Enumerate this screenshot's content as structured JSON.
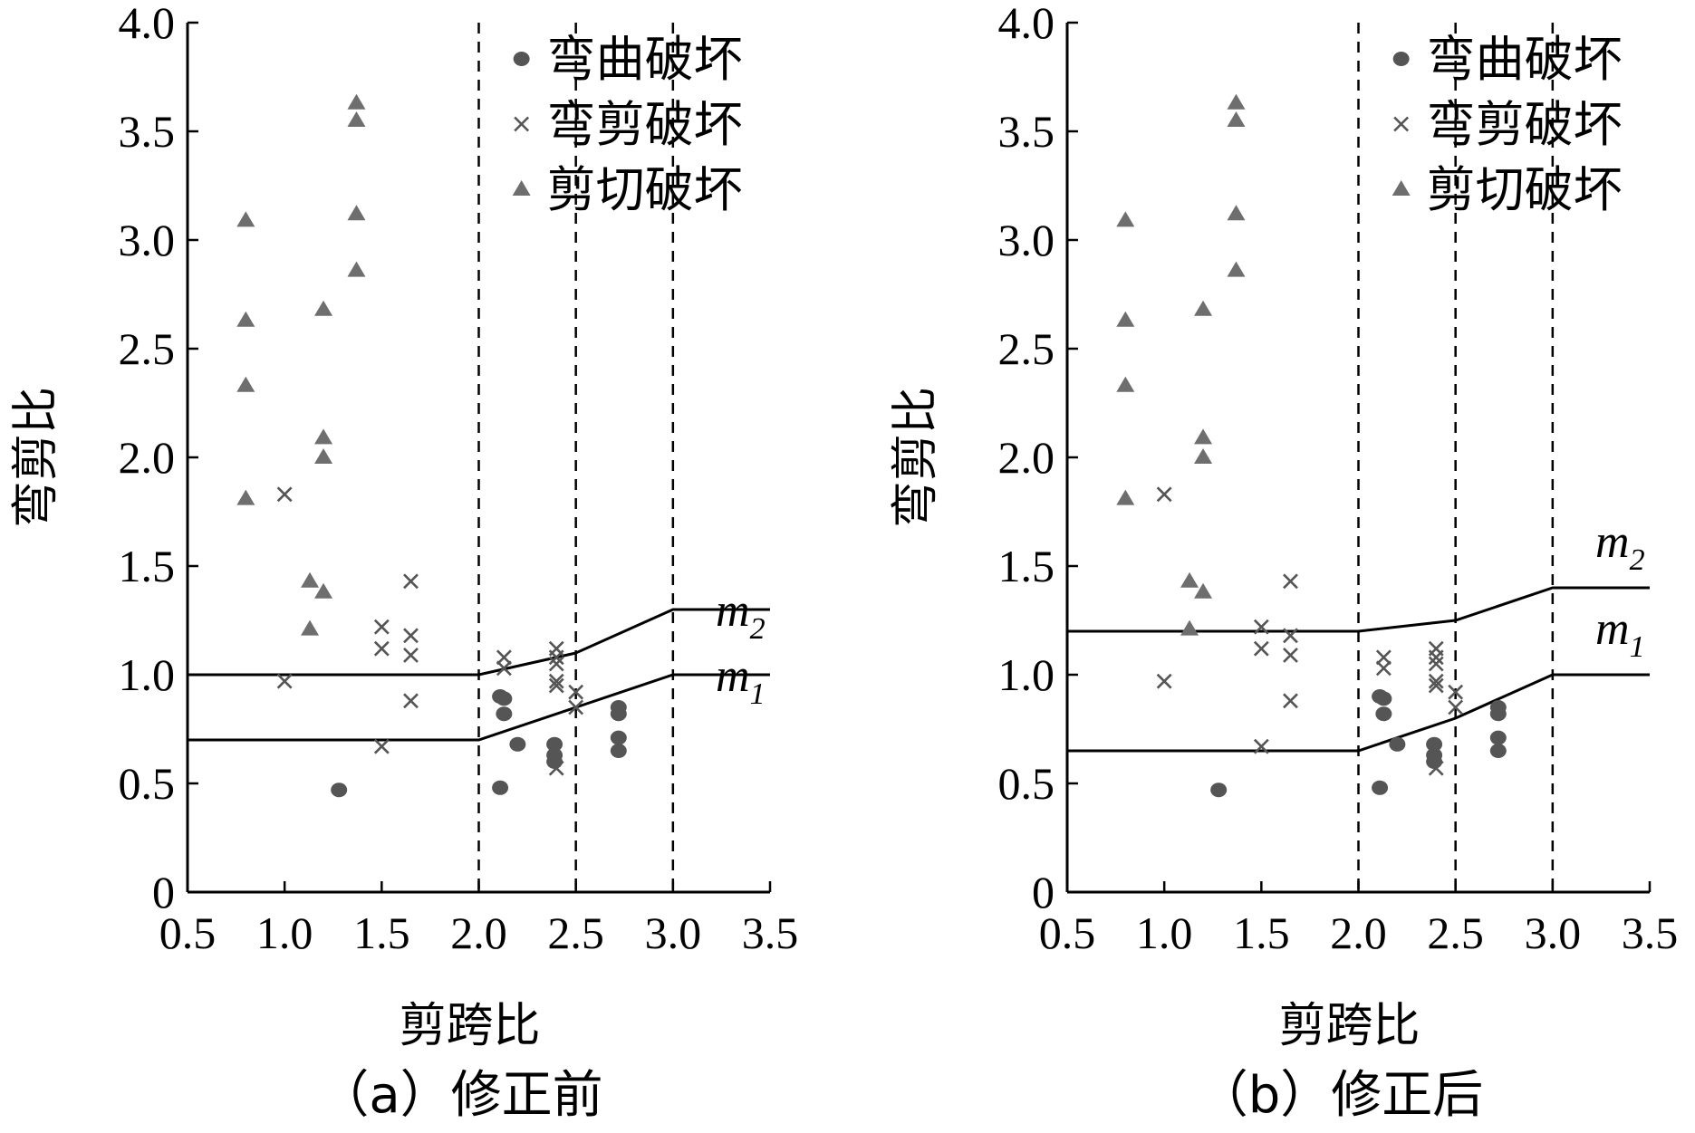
{
  "chart_data": [
    {
      "type": "scatter",
      "caption": "（a）修正前",
      "xlabel": "剪跨比",
      "ylabel": "弯剪比",
      "xlim": [
        0.5,
        3.5
      ],
      "ylim": [
        0,
        4.0
      ],
      "x_ticks": [
        "0.5",
        "1.0",
        "1.5",
        "2.0",
        "2.5",
        "3.0",
        "3.5"
      ],
      "y_ticks": [
        "0",
        "0.5",
        "1.0",
        "1.5",
        "2.0",
        "2.5",
        "3.0",
        "3.5",
        "4.0"
      ],
      "grid": false,
      "legend_position": "top-right",
      "dashed_vertical_lines": [
        2.0,
        2.5,
        3.0
      ],
      "series": [
        {
          "name": "弯曲破坏",
          "marker": "circle",
          "color": "#555555",
          "points": [
            [
              1.28,
              0.47
            ],
            [
              2.11,
              0.48
            ],
            [
              2.11,
              0.9
            ],
            [
              2.13,
              0.89
            ],
            [
              2.13,
              0.82
            ],
            [
              2.2,
              0.68
            ],
            [
              2.39,
              0.68
            ],
            [
              2.39,
              0.63
            ],
            [
              2.39,
              0.6
            ],
            [
              2.72,
              0.85
            ],
            [
              2.72,
              0.82
            ],
            [
              2.72,
              0.71
            ],
            [
              2.72,
              0.65
            ]
          ]
        },
        {
          "name": "弯剪破坏",
          "marker": "x",
          "color": "#555555",
          "points": [
            [
              1.0,
              1.83
            ],
            [
              1.0,
              0.97
            ],
            [
              1.5,
              1.22
            ],
            [
              1.5,
              1.12
            ],
            [
              1.5,
              0.67
            ],
            [
              1.65,
              1.43
            ],
            [
              1.65,
              1.18
            ],
            [
              1.65,
              1.09
            ],
            [
              1.65,
              0.88
            ],
            [
              2.13,
              1.08
            ],
            [
              2.13,
              1.03
            ],
            [
              2.4,
              1.12
            ],
            [
              2.4,
              1.08
            ],
            [
              2.4,
              1.05
            ],
            [
              2.4,
              0.97
            ],
            [
              2.4,
              0.95
            ],
            [
              2.4,
              0.57
            ],
            [
              2.5,
              0.92
            ],
            [
              2.5,
              0.85
            ]
          ]
        },
        {
          "name": "剪切破坏",
          "marker": "triangle",
          "color": "#6e6e6e",
          "points": [
            [
              0.8,
              3.09
            ],
            [
              0.8,
              2.63
            ],
            [
              0.8,
              2.33
            ],
            [
              0.8,
              1.81
            ],
            [
              1.13,
              1.43
            ],
            [
              1.13,
              1.21
            ],
            [
              1.2,
              2.68
            ],
            [
              1.2,
              2.09
            ],
            [
              1.2,
              2.0
            ],
            [
              1.2,
              1.38
            ],
            [
              1.37,
              3.63
            ],
            [
              1.37,
              3.55
            ],
            [
              1.37,
              3.12
            ],
            [
              1.37,
              2.86
            ]
          ]
        }
      ],
      "lines": [
        {
          "label": "m",
          "subscript": "2",
          "points": [
            [
              0.5,
              1.0
            ],
            [
              2.0,
              1.0
            ],
            [
              2.5,
              1.1
            ],
            [
              3.0,
              1.3
            ],
            [
              3.5,
              1.3
            ]
          ]
        },
        {
          "label": "m",
          "subscript": "1",
          "points": [
            [
              0.5,
              0.7
            ],
            [
              2.0,
              0.7
            ],
            [
              2.5,
              0.85
            ],
            [
              3.0,
              1.0
            ],
            [
              3.5,
              1.0
            ]
          ]
        }
      ]
    },
    {
      "type": "scatter",
      "caption": "（b）修正后",
      "xlabel": "剪跨比",
      "ylabel": "弯剪比",
      "xlim": [
        0.5,
        3.5
      ],
      "ylim": [
        0,
        4.0
      ],
      "x_ticks": [
        "0.5",
        "1.0",
        "1.5",
        "2.0",
        "2.5",
        "3.0",
        "3.5"
      ],
      "y_ticks": [
        "0",
        "0.5",
        "1.0",
        "1.5",
        "2.0",
        "2.5",
        "3.0",
        "3.5",
        "4.0"
      ],
      "grid": false,
      "legend_position": "top-right",
      "dashed_vertical_lines": [
        2.0,
        2.5,
        3.0
      ],
      "series": [
        {
          "name": "弯曲破坏",
          "marker": "circle",
          "color": "#555555",
          "points": [
            [
              1.28,
              0.47
            ],
            [
              2.11,
              0.48
            ],
            [
              2.11,
              0.9
            ],
            [
              2.13,
              0.89
            ],
            [
              2.13,
              0.82
            ],
            [
              2.2,
              0.68
            ],
            [
              2.39,
              0.68
            ],
            [
              2.39,
              0.63
            ],
            [
              2.39,
              0.6
            ],
            [
              2.72,
              0.85
            ],
            [
              2.72,
              0.82
            ],
            [
              2.72,
              0.71
            ],
            [
              2.72,
              0.65
            ]
          ]
        },
        {
          "name": "弯剪破坏",
          "marker": "x",
          "color": "#555555",
          "points": [
            [
              1.0,
              1.83
            ],
            [
              1.0,
              0.97
            ],
            [
              1.5,
              1.22
            ],
            [
              1.5,
              1.12
            ],
            [
              1.5,
              0.67
            ],
            [
              1.65,
              1.43
            ],
            [
              1.65,
              1.18
            ],
            [
              1.65,
              1.09
            ],
            [
              1.65,
              0.88
            ],
            [
              2.13,
              1.08
            ],
            [
              2.13,
              1.03
            ],
            [
              2.4,
              1.12
            ],
            [
              2.4,
              1.08
            ],
            [
              2.4,
              1.05
            ],
            [
              2.4,
              0.97
            ],
            [
              2.4,
              0.95
            ],
            [
              2.4,
              0.57
            ],
            [
              2.5,
              0.92
            ],
            [
              2.5,
              0.85
            ]
          ]
        },
        {
          "name": "剪切破坏",
          "marker": "triangle",
          "color": "#6e6e6e",
          "points": [
            [
              0.8,
              3.09
            ],
            [
              0.8,
              2.63
            ],
            [
              0.8,
              2.33
            ],
            [
              0.8,
              1.81
            ],
            [
              1.13,
              1.43
            ],
            [
              1.13,
              1.21
            ],
            [
              1.2,
              2.68
            ],
            [
              1.2,
              2.09
            ],
            [
              1.2,
              2.0
            ],
            [
              1.2,
              1.38
            ],
            [
              1.37,
              3.63
            ],
            [
              1.37,
              3.55
            ],
            [
              1.37,
              3.12
            ],
            [
              1.37,
              2.86
            ]
          ]
        }
      ],
      "lines": [
        {
          "label": "m",
          "subscript": "2",
          "points": [
            [
              0.5,
              1.2
            ],
            [
              2.0,
              1.2
            ],
            [
              2.5,
              1.25
            ],
            [
              3.0,
              1.4
            ],
            [
              3.5,
              1.4
            ]
          ]
        },
        {
          "label": "m",
          "subscript": "1",
          "points": [
            [
              0.5,
              0.65
            ],
            [
              2.0,
              0.65
            ],
            [
              2.5,
              0.8
            ],
            [
              3.0,
              1.0
            ],
            [
              3.5,
              1.0
            ]
          ]
        }
      ]
    }
  ]
}
